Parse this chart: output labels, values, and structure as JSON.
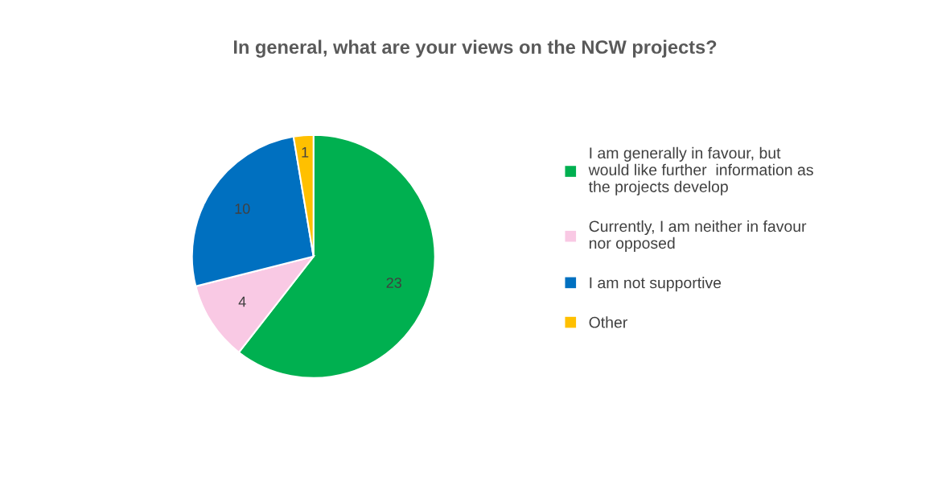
{
  "chart_data": {
    "type": "pie",
    "title": "In general, what are your views on the NCW projects?",
    "categories": [
      "I am generally in favour, but\nwould like further  information as\nthe projects develop",
      "Currently, I am neither in favour\nnor opposed",
      "I am not supportive",
      "Other"
    ],
    "values": [
      23,
      4,
      10,
      1
    ],
    "colors": [
      "#00b050",
      "#f9c9e4",
      "#0070c0",
      "#ffc000"
    ],
    "data_labels": true,
    "legend": "right"
  }
}
